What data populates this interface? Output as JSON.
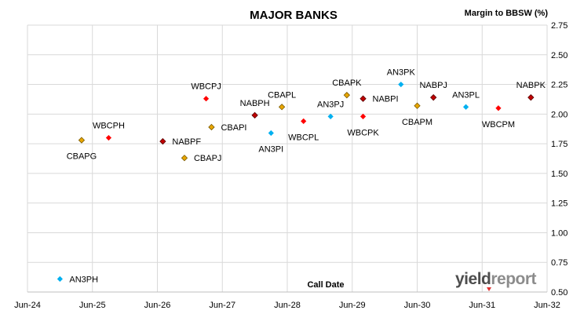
{
  "chart_data": {
    "type": "scatter",
    "title": "MAJOR BANKS",
    "ylabel": "Margin to BBSW (%)",
    "xlabel": "Call Date",
    "x_ticks": [
      "Jun-24",
      "Jun-25",
      "Jun-26",
      "Jun-27",
      "Jun-28",
      "Jun-29",
      "Jun-30",
      "Jun-31",
      "Jun-32"
    ],
    "y_ticks": [
      "0.50",
      "0.75",
      "1.00",
      "1.25",
      "1.50",
      "1.75",
      "2.00",
      "2.25",
      "2.50",
      "2.75"
    ],
    "xlim": [
      "2024-06",
      "2032-06"
    ],
    "ylim": [
      0.5,
      2.75
    ],
    "y_axis_side": "right",
    "grid": true,
    "legend": "none",
    "colors": {
      "CBA": "#e8a600",
      "WBC": "#ff0000",
      "NAB": "#c00000",
      "ANZ": "#00b0f0"
    },
    "points": [
      {
        "label": "CBAPG",
        "x": "2025-04",
        "y": 1.78,
        "issuer": "CBA"
      },
      {
        "label": "WBCPH",
        "x": "2025-09",
        "y": 1.8,
        "issuer": "WBC"
      },
      {
        "label": "NABPF",
        "x": "2026-07",
        "y": 1.77,
        "issuer": "NAB"
      },
      {
        "label": "CBAPJ",
        "x": "2026-11",
        "y": 1.63,
        "issuer": "CBA"
      },
      {
        "label": "WBCPJ",
        "x": "2027-03",
        "y": 2.13,
        "issuer": "WBC"
      },
      {
        "label": "CBAPI",
        "x": "2027-04",
        "y": 1.89,
        "issuer": "CBA"
      },
      {
        "label": "NABPH",
        "x": "2027-12",
        "y": 1.99,
        "issuer": "NAB"
      },
      {
        "label": "AN3PI",
        "x": "2028-03",
        "y": 1.84,
        "issuer": "ANZ"
      },
      {
        "label": "CBAPL",
        "x": "2028-05",
        "y": 2.06,
        "issuer": "CBA"
      },
      {
        "label": "WBCPL",
        "x": "2028-09",
        "y": 1.94,
        "issuer": "WBC"
      },
      {
        "label": "AN3PJ",
        "x": "2029-02",
        "y": 1.98,
        "issuer": "ANZ"
      },
      {
        "label": "CBAPK",
        "x": "2029-05",
        "y": 2.16,
        "issuer": "CBA"
      },
      {
        "label": "WBCPK",
        "x": "2029-08",
        "y": 1.98,
        "issuer": "WBC"
      },
      {
        "label": "NABPI",
        "x": "2029-08",
        "y": 2.13,
        "issuer": "NAB"
      },
      {
        "label": "AN3PK",
        "x": "2030-03",
        "y": 2.25,
        "issuer": "ANZ"
      },
      {
        "label": "CBAPM",
        "x": "2030-06",
        "y": 2.07,
        "issuer": "CBA"
      },
      {
        "label": "NABPJ",
        "x": "2030-09",
        "y": 2.14,
        "issuer": "NAB"
      },
      {
        "label": "AN3PL",
        "x": "2031-03",
        "y": 2.06,
        "issuer": "ANZ"
      },
      {
        "label": "WBCPM",
        "x": "2031-09",
        "y": 2.05,
        "issuer": "WBC"
      },
      {
        "label": "NABPK",
        "x": "2032-03",
        "y": 2.14,
        "issuer": "NAB"
      },
      {
        "label": "AN3PH",
        "x": "2024-12",
        "y": 0.61,
        "issuer": "ANZ"
      }
    ]
  },
  "watermark": {
    "yield": "yield",
    "report": "report"
  }
}
